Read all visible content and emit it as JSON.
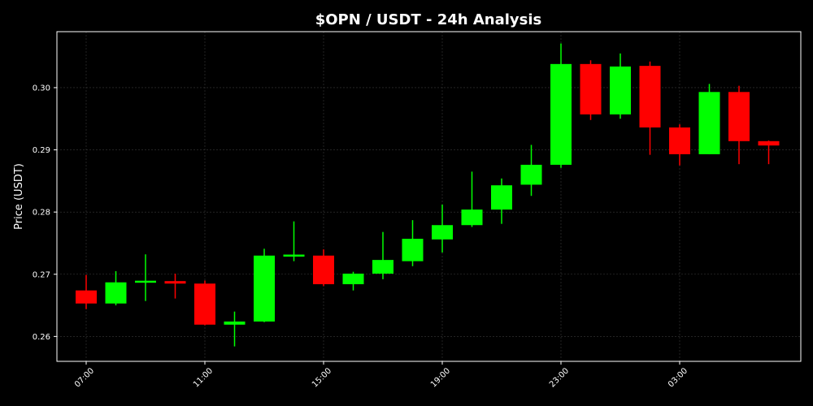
{
  "chart_data": {
    "type": "candlestick",
    "title": "$OPN / USDT - 24h Analysis",
    "xlabel": "",
    "ylabel": "Price (USDT)",
    "ylim": [
      0.256,
      0.309
    ],
    "y_ticks": [
      0.26,
      0.27,
      0.28,
      0.29,
      0.3
    ],
    "y_tick_labels": [
      "0.26",
      "0.27",
      "0.28",
      "0.29",
      "0.30"
    ],
    "x_tick_labels": [
      "07:00",
      "11:00",
      "15:00",
      "19:00",
      "23:00",
      "03:00"
    ],
    "x_tick_indices": [
      0,
      4,
      8,
      12,
      16,
      20
    ],
    "grid": true,
    "background": "#000000",
    "up_color": "#00ff00",
    "down_color": "#ff0000",
    "candles": [
      {
        "time": "07:00",
        "open": 0.2674,
        "high": 0.2699,
        "low": 0.2644,
        "close": 0.2653
      },
      {
        "time": "08:00",
        "open": 0.2653,
        "high": 0.2705,
        "low": 0.265,
        "close": 0.2687
      },
      {
        "time": "09:00",
        "open": 0.2687,
        "high": 0.2732,
        "low": 0.2657,
        "close": 0.2689
      },
      {
        "time": "10:00",
        "open": 0.2689,
        "high": 0.2701,
        "low": 0.2661,
        "close": 0.2685
      },
      {
        "time": "11:00",
        "open": 0.2685,
        "high": 0.269,
        "low": 0.2618,
        "close": 0.2619
      },
      {
        "time": "12:00",
        "open": 0.2619,
        "high": 0.264,
        "low": 0.2584,
        "close": 0.2624
      },
      {
        "time": "13:00",
        "open": 0.2624,
        "high": 0.2741,
        "low": 0.2623,
        "close": 0.273
      },
      {
        "time": "14:00",
        "open": 0.273,
        "high": 0.2785,
        "low": 0.2721,
        "close": 0.273
      },
      {
        "time": "15:00",
        "open": 0.273,
        "high": 0.274,
        "low": 0.2681,
        "close": 0.2684
      },
      {
        "time": "16:00",
        "open": 0.2684,
        "high": 0.2704,
        "low": 0.2674,
        "close": 0.2701
      },
      {
        "time": "17:00",
        "open": 0.2701,
        "high": 0.2768,
        "low": 0.2692,
        "close": 0.2723
      },
      {
        "time": "18:00",
        "open": 0.2721,
        "high": 0.2787,
        "low": 0.2713,
        "close": 0.2757
      },
      {
        "time": "19:00",
        "open": 0.2756,
        "high": 0.2812,
        "low": 0.2735,
        "close": 0.2779
      },
      {
        "time": "20:00",
        "open": 0.2779,
        "high": 0.2865,
        "low": 0.2776,
        "close": 0.2804
      },
      {
        "time": "21:00",
        "open": 0.2804,
        "high": 0.2854,
        "low": 0.2781,
        "close": 0.2843
      },
      {
        "time": "22:00",
        "open": 0.2844,
        "high": 0.2908,
        "low": 0.2826,
        "close": 0.2876
      },
      {
        "time": "23:00",
        "open": 0.2876,
        "high": 0.3071,
        "low": 0.2871,
        "close": 0.3038
      },
      {
        "time": "00:00",
        "open": 0.3038,
        "high": 0.3044,
        "low": 0.2948,
        "close": 0.2957
      },
      {
        "time": "01:00",
        "open": 0.2957,
        "high": 0.3055,
        "low": 0.295,
        "close": 0.3034
      },
      {
        "time": "02:00",
        "open": 0.3035,
        "high": 0.3042,
        "low": 0.2892,
        "close": 0.2936
      },
      {
        "time": "03:00",
        "open": 0.2936,
        "high": 0.2941,
        "low": 0.2875,
        "close": 0.2893
      },
      {
        "time": "04:00",
        "open": 0.2893,
        "high": 0.3006,
        "low": 0.2893,
        "close": 0.2993
      },
      {
        "time": "05:00",
        "open": 0.2993,
        "high": 0.3003,
        "low": 0.2877,
        "close": 0.2914
      },
      {
        "time": "06:00",
        "open": 0.2914,
        "high": 0.2915,
        "low": 0.2877,
        "close": 0.2907
      }
    ]
  }
}
